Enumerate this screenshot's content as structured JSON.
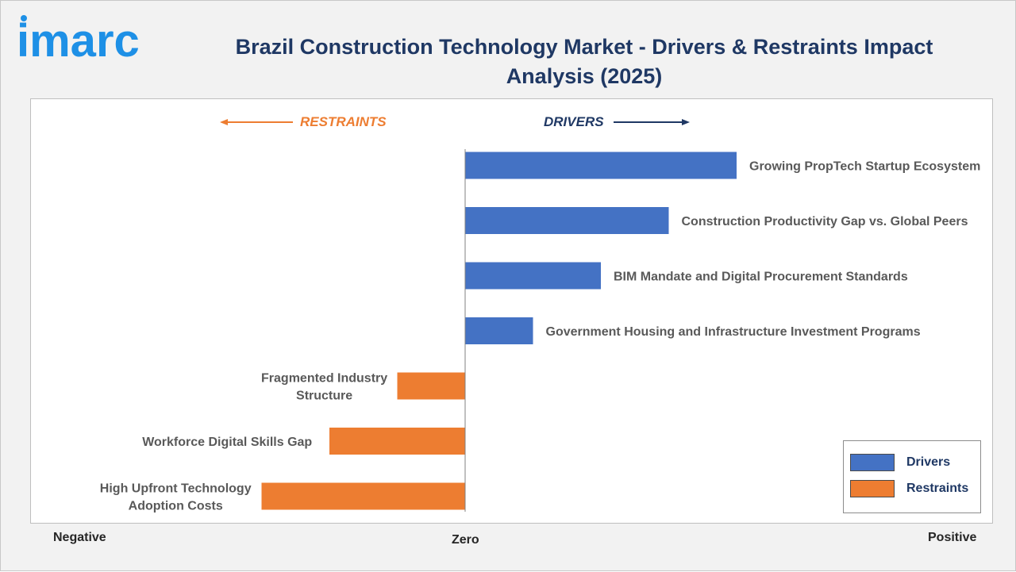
{
  "header": {
    "logo_text": "imarc",
    "title": "Brazil Construction Technology Market - Drivers & Restraints Impact Analysis (2025)"
  },
  "direction_labels": {
    "restraints": "RESTRAINTS",
    "drivers": "DRIVERS"
  },
  "axis": {
    "negative": "Negative",
    "zero": "Zero",
    "positive": "Positive"
  },
  "colors": {
    "drivers": "#4472c4",
    "restraints": "#ed7d31",
    "title": "#1f3864",
    "logo": "#1e90e6"
  },
  "legend": {
    "placement": "bottom-right",
    "items": [
      {
        "label": "Drivers",
        "color": "#4472c4"
      },
      {
        "label": "Restraints",
        "color": "#ed7d31"
      }
    ]
  },
  "chart_data": {
    "type": "bar",
    "orientation": "horizontal",
    "title": "Brazil Construction Technology Market - Drivers & Restraints Impact Analysis (2025)",
    "xlim": [
      -4.5,
      4.5
    ],
    "categories": [
      "Growing PropTech Startup Ecosystem",
      "Construction Productivity Gap vs. Global Peers",
      "BIM Mandate and Digital Procurement Standards",
      "Government Housing and Infrastructure Investment Programs",
      "Fragmented Industry Structure",
      "Workforce Digital Skills Gap",
      "High Upfront Technology Adoption Costs"
    ],
    "series": [
      {
        "name": "Drivers",
        "values": [
          4,
          3,
          2,
          1,
          null,
          null,
          null
        ]
      },
      {
        "name": "Restraints",
        "values": [
          null,
          null,
          null,
          null,
          -1,
          -2,
          -3
        ]
      }
    ],
    "grid": false,
    "legend_position": "bottom-right"
  }
}
